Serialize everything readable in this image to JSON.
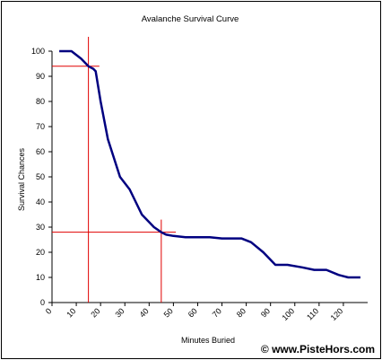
{
  "chart_data": {
    "type": "line",
    "title": "Avalanche Survival Curve",
    "xlabel": "Minutes Buried",
    "ylabel": "Survival Chances",
    "xlim": [
      0,
      130
    ],
    "ylim": [
      0,
      100
    ],
    "x_ticks": [
      0,
      10,
      20,
      30,
      40,
      50,
      60,
      70,
      80,
      90,
      100,
      110,
      120
    ],
    "y_ticks": [
      0,
      10,
      20,
      30,
      40,
      50,
      60,
      70,
      80,
      90,
      100
    ],
    "grid": false,
    "series": [
      {
        "color": "#000080",
        "x": [
          3,
          8,
          12,
          15,
          17,
          18,
          20,
          23,
          28,
          32,
          37,
          42,
          45,
          47,
          50,
          55,
          65,
          70,
          78,
          82,
          87,
          92,
          97,
          103,
          108,
          113,
          118,
          122,
          127
        ],
        "y": [
          100,
          100,
          97,
          94,
          93,
          92,
          80,
          65,
          50,
          45,
          35,
          30,
          28,
          27,
          26.5,
          26,
          26,
          25.5,
          25.5,
          24,
          20,
          15,
          15,
          14,
          13,
          13,
          11,
          10,
          10
        ]
      }
    ],
    "reference_lines": {
      "color": "#e00000",
      "vertical": [
        15,
        45
      ],
      "horizontal": [
        94,
        28
      ]
    }
  },
  "copyright": "© www.PisteHors.com"
}
